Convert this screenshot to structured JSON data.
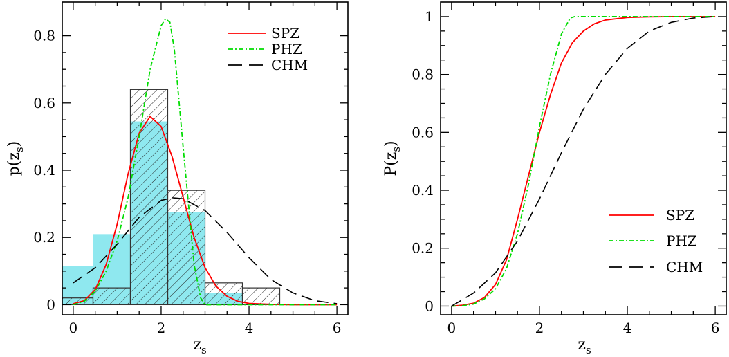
{
  "colors": {
    "spz": "#ff0000",
    "phz": "#00dd00",
    "chm": "#000000",
    "hist_fill": "#8fe8ef",
    "hatch": "#222222"
  },
  "chart_data": [
    {
      "type": "line",
      "panel": "left",
      "ylabel": "p(z",
      "ylabel_sub": "s",
      "ylabel_close": ")",
      "xlabel": "z",
      "xlabel_sub": "s",
      "xlim": [
        -0.25,
        6.25
      ],
      "ylim": [
        -0.03,
        0.9
      ],
      "xticks": [
        0,
        2,
        4,
        6
      ],
      "yticks": [
        0,
        0.2,
        0.4,
        0.6,
        0.8
      ],
      "legend_position": "top-right",
      "legend": [
        "SPZ",
        "PHZ",
        "CHM"
      ],
      "histograms": [
        {
          "style": "filled",
          "bins": [
            {
              "x0": -0.25,
              "x1": 0.45,
              "y": 0.115
            },
            {
              "x0": 0.45,
              "x1": 1.3,
              "y": 0.21
            },
            {
              "x0": 1.3,
              "x1": 2.15,
              "y": 0.545
            },
            {
              "x0": 2.15,
              "x1": 3.0,
              "y": 0.275
            },
            {
              "x0": 3.0,
              "x1": 3.85,
              "y": 0.035
            }
          ]
        },
        {
          "style": "hatched",
          "bins": [
            {
              "x0": -0.25,
              "x1": 0.45,
              "y": 0.02
            },
            {
              "x0": 0.45,
              "x1": 1.3,
              "y": 0.05
            },
            {
              "x0": 1.3,
              "x1": 2.15,
              "y": 0.64
            },
            {
              "x0": 2.15,
              "x1": 3.0,
              "y": 0.34
            },
            {
              "x0": 3.0,
              "x1": 3.85,
              "y": 0.065
            },
            {
              "x0": 3.85,
              "x1": 4.7,
              "y": 0.05
            }
          ]
        }
      ],
      "series": [
        {
          "name": "SPZ",
          "style": "solid",
          "x": [
            0,
            0.25,
            0.5,
            0.75,
            1.0,
            1.25,
            1.5,
            1.75,
            2.0,
            2.25,
            2.5,
            2.75,
            3.0,
            3.25,
            3.5,
            3.75,
            4.0,
            4.5,
            5.0,
            6.0
          ],
          "y": [
            0.003,
            0.012,
            0.045,
            0.12,
            0.24,
            0.39,
            0.51,
            0.56,
            0.53,
            0.44,
            0.32,
            0.2,
            0.11,
            0.055,
            0.025,
            0.01,
            0.004,
            0.001,
            0.0,
            0.0
          ]
        },
        {
          "name": "PHZ",
          "style": "dashdot",
          "x": [
            0,
            0.25,
            0.5,
            0.75,
            1.0,
            1.25,
            1.5,
            1.75,
            2.0,
            2.1,
            2.2,
            2.3,
            2.5,
            2.75,
            2.9,
            3.0,
            3.5,
            4.0,
            6.0
          ],
          "y": [
            0.0,
            0.01,
            0.04,
            0.1,
            0.19,
            0.32,
            0.5,
            0.7,
            0.83,
            0.85,
            0.84,
            0.76,
            0.47,
            0.12,
            0.02,
            0.0,
            0.0,
            0.0,
            0.0
          ]
        },
        {
          "name": "CHM",
          "style": "dashed",
          "x": [
            0,
            0.5,
            1.0,
            1.5,
            2.0,
            2.25,
            2.5,
            3.0,
            3.5,
            4.0,
            4.5,
            5.0,
            5.5,
            6.0
          ],
          "y": [
            0.065,
            0.11,
            0.18,
            0.26,
            0.31,
            0.318,
            0.315,
            0.28,
            0.215,
            0.14,
            0.075,
            0.035,
            0.012,
            0.003
          ]
        }
      ]
    },
    {
      "type": "line",
      "panel": "right",
      "ylabel": "P(z",
      "ylabel_sub": "s",
      "ylabel_close": ")",
      "xlabel": "z",
      "xlabel_sub": "s",
      "xlim": [
        -0.25,
        6.25
      ],
      "ylim": [
        -0.03,
        1.05
      ],
      "xticks": [
        0,
        2,
        4,
        6
      ],
      "yticks": [
        0,
        0.2,
        0.4,
        0.6,
        0.8,
        1
      ],
      "legend_position": "bottom-right",
      "legend": [
        "SPZ",
        "PHZ",
        "CHM"
      ],
      "series": [
        {
          "name": "SPZ",
          "style": "solid",
          "x": [
            0,
            0.25,
            0.5,
            0.75,
            1.0,
            1.25,
            1.5,
            1.75,
            2.0,
            2.25,
            2.5,
            2.75,
            3.0,
            3.25,
            3.5,
            4.0,
            4.5,
            5.0,
            6.0
          ],
          "y": [
            0.0,
            0.003,
            0.01,
            0.03,
            0.075,
            0.16,
            0.3,
            0.45,
            0.6,
            0.73,
            0.84,
            0.91,
            0.95,
            0.975,
            0.988,
            0.997,
            0.999,
            1.0,
            1.0
          ]
        },
        {
          "name": "PHZ",
          "style": "dashdot",
          "x": [
            0,
            0.25,
            0.5,
            0.75,
            1.0,
            1.25,
            1.5,
            1.75,
            2.0,
            2.25,
            2.5,
            2.7,
            2.8,
            3.0,
            6.0
          ],
          "y": [
            0.0,
            0.001,
            0.007,
            0.025,
            0.06,
            0.13,
            0.25,
            0.42,
            0.62,
            0.8,
            0.94,
            0.995,
            1.0,
            1.0,
            1.0
          ]
        },
        {
          "name": "CHM",
          "style": "dashed",
          "x": [
            0,
            0.5,
            1.0,
            1.5,
            2.0,
            2.5,
            3.0,
            3.5,
            4.0,
            4.5,
            5.0,
            5.5,
            6.0
          ],
          "y": [
            0.0,
            0.045,
            0.115,
            0.225,
            0.37,
            0.53,
            0.68,
            0.8,
            0.89,
            0.95,
            0.98,
            0.995,
            1.0
          ]
        }
      ]
    }
  ]
}
